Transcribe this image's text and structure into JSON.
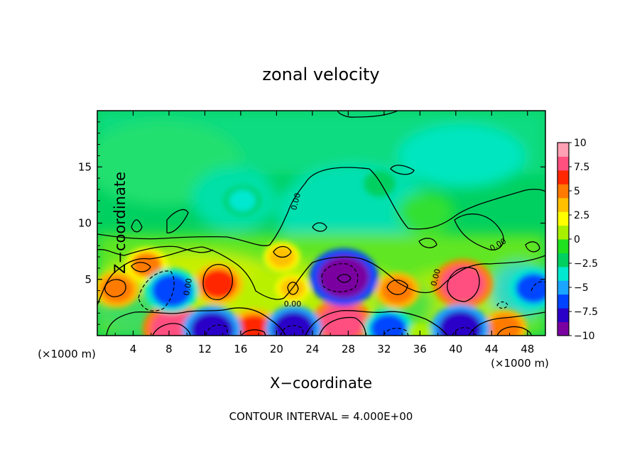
{
  "chart_data": {
    "type": "heatmap",
    "title": "zonal velocity",
    "xlabel": "X−coordinate",
    "ylabel": "Z−coordinate",
    "x_unit_left": "(×1000 m)",
    "x_unit_right": "(×1000 m)",
    "xlim": [
      0,
      50
    ],
    "ylim": [
      0,
      20
    ],
    "x_ticks": [
      4,
      8,
      12,
      16,
      20,
      24,
      28,
      32,
      36,
      40,
      44,
      48
    ],
    "y_ticks": [
      5,
      10,
      15
    ],
    "grid": false,
    "colorbar": {
      "placement": "right",
      "range": [
        -10,
        10
      ],
      "ticks": [
        "10",
        "7.5",
        "5",
        "2.5",
        "0",
        "−2.5",
        "−5",
        "−7.5",
        "−10"
      ],
      "colors": [
        "#7a00a0",
        "#2a00c8",
        "#0044ff",
        "#1aa6ff",
        "#00e8d0",
        "#00d060",
        "#20e020",
        "#a8f000",
        "#ffff00",
        "#ffc000",
        "#ff7a00",
        "#ff2800",
        "#ff5080",
        "#ffa0b4"
      ]
    },
    "contour_label": "0.00",
    "footer": "CONTOUR INTERVAL = 4.000E+00",
    "features": [
      {
        "x": 8.5,
        "z": 0.6,
        "value": 8.5
      },
      {
        "x": 13.5,
        "z": 4.6,
        "value": 6
      },
      {
        "x": 2.2,
        "z": 4.1,
        "value": 5
      },
      {
        "x": 5.5,
        "z": 6.3,
        "value": 4.5
      },
      {
        "x": 17.5,
        "z": 0.4,
        "value": 7
      },
      {
        "x": 27.3,
        "z": 1.2,
        "value": 8
      },
      {
        "x": 33.5,
        "z": 4.0,
        "value": 5
      },
      {
        "x": 40.8,
        "z": 4.6,
        "value": 8
      },
      {
        "x": 45.5,
        "z": 0.7,
        "value": 5
      },
      {
        "x": 20.6,
        "z": 7.0,
        "value": 3.5
      },
      {
        "x": 21.8,
        "z": 4.2,
        "value": 3
      },
      {
        "x": 8.3,
        "z": 4.0,
        "value": -7
      },
      {
        "x": 12.8,
        "z": 0.5,
        "value": -8
      },
      {
        "x": 21.9,
        "z": 0.6,
        "value": -7.5
      },
      {
        "x": 27.5,
        "z": 5.2,
        "value": -10
      },
      {
        "x": 32.5,
        "z": 0.6,
        "value": -6
      },
      {
        "x": 40.5,
        "z": 0.6,
        "value": -8
      },
      {
        "x": 48.7,
        "z": 4.2,
        "value": -6
      },
      {
        "x": 16.2,
        "z": 12.0,
        "value": -3.5
      },
      {
        "x": 31.5,
        "z": 13.5,
        "value": -2.5
      },
      {
        "x": 36.0,
        "z": 0.3,
        "value": 1
      }
    ]
  }
}
